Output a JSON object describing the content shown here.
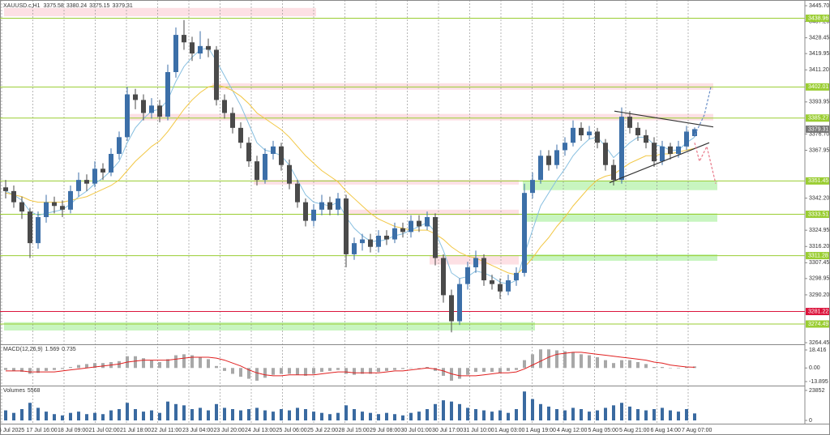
{
  "chart_data": {
    "type": "candlestick",
    "symbol": "XAUUSD.c,H1",
    "ylim": [
      3263.6,
      3447.9
    ],
    "yticks": [
      {
        "value": 3445.7,
        "label": "3445.70"
      },
      {
        "value": 3437.2,
        "label": "3437.20"
      },
      {
        "value": 3428.45,
        "label": "3428.45"
      },
      {
        "value": 3419.95,
        "label": "3419.95"
      },
      {
        "value": 3411.2,
        "label": "3411.20"
      },
      3393.95,
      {
        "value": 3376.7,
        "label": "3376.70"
      },
      3367.95,
      {
        "value": 3342.2,
        "label": "3342.20"
      },
      3324.95,
      {
        "value": 3316.2,
        "label": "3316.20"
      },
      3307.45,
      3298.95,
      {
        "value": 3290.2,
        "label": "3290.20"
      },
      3264.45
    ],
    "xticks": [
      {
        "value": -0.5,
        "label": "16 Jul 2025"
      },
      {
        "value": 3.35,
        "label": "17 Jul 16:00"
      },
      {
        "value": 7.2,
        "label": "18 Jul 09:00"
      },
      {
        "value": 11.05,
        "label": "21 Jul 02:00"
      },
      {
        "value": 14.9,
        "label": "21 Jul 18:00"
      },
      {
        "value": 18.75,
        "label": "22 Jul 11:00"
      },
      {
        "value": 22.6,
        "label": "23 Jul 04:00"
      },
      {
        "value": 26.45,
        "label": "23 Jul 20:00"
      },
      {
        "value": 30.3,
        "label": "24 Jul 13:00"
      },
      {
        "value": 34.15,
        "label": "25 Jul 06:00"
      },
      {
        "value": 38,
        "label": "25 Jul 22:00"
      },
      {
        "value": 41.85,
        "label": "28 Jul 15:00"
      },
      {
        "value": 45.7,
        "label": "29 Jul 08:00"
      },
      {
        "value": 49.55,
        "label": "30 Jul 01:00"
      },
      {
        "value": 53.4,
        "label": "30 Jul 17:00"
      },
      {
        "value": 57.25,
        "label": "31 Jul 10:00"
      },
      {
        "value": 61.1,
        "label": "1 Aug 03:00"
      },
      {
        "value": 64.95,
        "label": "1 Aug 19:00"
      },
      {
        "value": 68.8,
        "label": "4 Aug 12:00"
      },
      {
        "value": 72.65,
        "label": "5 Aug 05:00"
      },
      {
        "value": 76.5,
        "label": "5 Aug 21:00"
      },
      {
        "value": 80.35,
        "label": "6 Aug 14:00"
      },
      {
        "value": 84.2,
        "label": "7 Aug 07:00"
      }
    ],
    "grid": "vertical",
    "up_color": "#3c6fa8",
    "down_color": "#4a4a4a",
    "ohlc": [
      [
        3348,
        3352,
        3342,
        3346
      ],
      [
        3346,
        3349,
        3337,
        3340
      ],
      [
        3340,
        3343,
        3331,
        3335
      ],
      [
        3335,
        3337,
        3310,
        3318
      ],
      [
        3318,
        3335,
        3315,
        3332
      ],
      [
        3332,
        3344,
        3329,
        3340
      ],
      [
        3340,
        3343,
        3334,
        3338
      ],
      [
        3338,
        3341,
        3332,
        3336
      ],
      [
        3336,
        3349,
        3334,
        3346
      ],
      [
        3346,
        3356,
        3343,
        3352
      ],
      [
        3352,
        3355,
        3346,
        3350
      ],
      [
        3350,
        3362,
        3348,
        3358
      ],
      [
        3358,
        3361,
        3352,
        3356
      ],
      [
        3356,
        3369,
        3354,
        3366
      ],
      [
        3366,
        3378,
        3363,
        3375
      ],
      [
        3375,
        3402,
        3373,
        3398
      ],
      [
        3398,
        3401,
        3390,
        3395
      ],
      [
        3395,
        3398,
        3384,
        3388
      ],
      [
        3388,
        3396,
        3385,
        3392
      ],
      [
        3392,
        3395,
        3383,
        3386
      ],
      [
        3386,
        3414,
        3384,
        3410
      ],
      [
        3410,
        3434,
        3407,
        3430
      ],
      [
        3430,
        3438,
        3422,
        3426
      ],
      [
        3426,
        3429,
        3416,
        3420
      ],
      [
        3420,
        3432,
        3417,
        3424
      ],
      [
        3424,
        3428,
        3418,
        3422
      ],
      [
        3422,
        3424,
        3392,
        3395
      ],
      [
        3395,
        3398,
        3385,
        3388
      ],
      [
        3388,
        3391,
        3377,
        3380
      ],
      [
        3380,
        3383,
        3369,
        3372
      ],
      [
        3372,
        3375,
        3359,
        3362
      ],
      [
        3362,
        3365,
        3349,
        3352
      ],
      [
        3352,
        3369,
        3350,
        3366
      ],
      [
        3366,
        3373,
        3363,
        3370
      ],
      [
        3370,
        3372,
        3357,
        3360
      ],
      [
        3360,
        3363,
        3347,
        3350
      ],
      [
        3350,
        3352,
        3337,
        3340
      ],
      [
        3340,
        3342,
        3327,
        3330
      ],
      [
        3330,
        3339,
        3327,
        3336
      ],
      [
        3336,
        3344,
        3333,
        3340
      ],
      [
        3340,
        3343,
        3333,
        3336
      ],
      [
        3336,
        3345,
        3333,
        3342
      ],
      [
        3342,
        3344,
        3305,
        3312
      ],
      [
        3312,
        3321,
        3309,
        3318
      ],
      [
        3318,
        3323,
        3314,
        3320
      ],
      [
        3320,
        3323,
        3313,
        3316
      ],
      [
        3316,
        3325,
        3313,
        3322
      ],
      [
        3322,
        3325,
        3317,
        3320
      ],
      [
        3320,
        3329,
        3318,
        3326
      ],
      [
        3326,
        3329,
        3321,
        3324
      ],
      [
        3324,
        3333,
        3321,
        3330
      ],
      [
        3330,
        3333,
        3324,
        3327
      ],
      [
        3327,
        3335,
        3325,
        3332
      ],
      [
        3332,
        3334,
        3306,
        3310
      ],
      [
        3310,
        3312,
        3286,
        3290
      ],
      [
        3290,
        3293,
        3270,
        3276
      ],
      [
        3276,
        3299,
        3274,
        3296
      ],
      [
        3296,
        3308,
        3293,
        3305
      ],
      [
        3305,
        3314,
        3302,
        3310
      ],
      [
        3310,
        3312,
        3295,
        3298
      ],
      [
        3298,
        3301,
        3293,
        3296
      ],
      [
        3296,
        3299,
        3288,
        3292
      ],
      [
        3292,
        3301,
        3290,
        3298
      ],
      [
        3298,
        3305,
        3295,
        3302
      ],
      [
        3302,
        3350,
        3300,
        3345
      ],
      [
        3345,
        3356,
        3342,
        3352
      ],
      [
        3352,
        3368,
        3350,
        3365
      ],
      [
        3365,
        3368,
        3357,
        3360
      ],
      [
        3360,
        3371,
        3358,
        3368
      ],
      [
        3368,
        3375,
        3365,
        3372
      ],
      [
        3372,
        3384,
        3370,
        3380
      ],
      [
        3380,
        3383,
        3373,
        3376
      ],
      [
        3376,
        3381,
        3374,
        3378
      ],
      [
        3378,
        3380,
        3369,
        3372
      ],
      [
        3372,
        3374,
        3357,
        3360
      ],
      [
        3360,
        3363,
        3349,
        3352
      ],
      [
        3352,
        3391,
        3350,
        3386
      ],
      [
        3386,
        3389,
        3377,
        3380
      ],
      [
        3380,
        3383,
        3373,
        3376
      ],
      [
        3376,
        3379,
        3369,
        3372
      ],
      [
        3372,
        3375,
        3359,
        3362
      ],
      [
        3362,
        3373,
        3360,
        3370
      ],
      [
        3370,
        3372,
        3363,
        3366
      ],
      [
        3366,
        3373,
        3364,
        3370
      ],
      [
        3370,
        3381,
        3368,
        3378
      ],
      [
        3375.58,
        3380.24,
        3375.15,
        3379.31
      ]
    ],
    "ma_fast": {
      "color": "#87bfe0",
      "values": [
        3346,
        3344,
        3341,
        3335,
        3333,
        3334,
        3335,
        3336,
        3339,
        3343,
        3346,
        3350,
        3353,
        3357,
        3362,
        3372,
        3380,
        3385,
        3389,
        3390,
        3395,
        3405,
        3413,
        3418,
        3422,
        3423,
        3416,
        3408,
        3400,
        3392,
        3382,
        3372,
        3368,
        3367,
        3365,
        3360,
        3352,
        3344,
        3340,
        3339,
        3338,
        3340,
        3332,
        3326,
        3322,
        3319,
        3319,
        3320,
        3322,
        3323,
        3325,
        3327,
        3329,
        3324,
        3314,
        3302,
        3299,
        3300,
        3303,
        3302,
        3300,
        3297,
        3296,
        3298,
        3312,
        3325,
        3338,
        3345,
        3352,
        3358,
        3365,
        3370,
        3374,
        3375,
        3370,
        3364,
        3368,
        3372,
        3375,
        3375,
        3371,
        3370,
        3368,
        3368,
        3372,
        3375
      ]
    },
    "ma_slow": {
      "color": "#f2c744",
      "values": [
        3345,
        3344,
        3343,
        3341,
        3340,
        3340,
        3340,
        3340,
        3341,
        3342,
        3343,
        3345,
        3347,
        3349,
        3352,
        3357,
        3362,
        3366,
        3370,
        3373,
        3378,
        3384,
        3390,
        3395,
        3399,
        3402,
        3403,
        3402,
        3400,
        3397,
        3393,
        3388,
        3385,
        3382,
        3379,
        3375,
        3370,
        3365,
        3361,
        3357,
        3354,
        3351,
        3346,
        3342,
        3338,
        3334,
        3331,
        3329,
        3327,
        3326,
        3325,
        3325,
        3325,
        3323,
        3320,
        3316,
        3313,
        3311,
        3310,
        3308,
        3306,
        3304,
        3302,
        3301,
        3305,
        3310,
        3316,
        3321,
        3327,
        3332,
        3338,
        3343,
        3348,
        3352,
        3354,
        3355,
        3358,
        3361,
        3363,
        3365,
        3365,
        3366,
        3366,
        3367,
        3368,
        3369
      ]
    },
    "levels": [
      {
        "value": 3438.96,
        "color": "#9acd32"
      },
      {
        "value": 3402.01,
        "color": "#9acd32"
      },
      {
        "value": 3385.27,
        "color": "#9acd32"
      },
      {
        "value": 3351.45,
        "color": "#9acd32"
      },
      {
        "value": 3333.51,
        "color": "#9acd32"
      },
      {
        "value": 3311.28,
        "color": "#9acd32"
      },
      {
        "value": 3281.22,
        "color": "#dc143c"
      },
      {
        "value": 3274.49,
        "color": "#9acd32"
      }
    ],
    "zones": [
      {
        "low": 3440,
        "high": 3444.5,
        "from": -0.2,
        "to": 38.3,
        "color": "#fde0e4"
      },
      {
        "low": 3400.5,
        "high": 3404,
        "from": 25.5,
        "to": 87.3,
        "color": "#fde0e4"
      },
      {
        "low": 3384,
        "high": 3387.5,
        "from": 15.3,
        "to": 87.3,
        "color": "#fde0e4"
      },
      {
        "low": 3349.5,
        "high": 3352,
        "from": 30.6,
        "to": 63.3,
        "color": "#fde0e4"
      },
      {
        "low": 3346.5,
        "high": 3351.5,
        "from": 63.8,
        "to": 87.8,
        "color": "#c8f5c0"
      },
      {
        "low": 3333,
        "high": 3336,
        "from": 42.3,
        "to": 63.3,
        "color": "#fde0e4"
      },
      {
        "low": 3329.5,
        "high": 3334,
        "from": 63.8,
        "to": 87.8,
        "color": "#c8f5c0"
      },
      {
        "low": 3306.5,
        "high": 3311.5,
        "from": 52.3,
        "to": 63.3,
        "color": "#fde0e4"
      },
      {
        "low": 3308.5,
        "high": 3312,
        "from": 63.8,
        "to": 87.8,
        "color": "#c8f5c0"
      },
      {
        "low": 3271,
        "high": 3275.5,
        "from": -0.2,
        "to": 65.3,
        "color": "#c8f5c0"
      }
    ],
    "lines": [
      {
        "x": [
          75.1,
          87.3
        ],
        "y": [
          3389,
          3380.5
        ],
        "color": "#333333"
      },
      {
        "x": [
          74.5,
          86.8
        ],
        "y": [
          3350.5,
          3372
        ],
        "color": "#333333"
      },
      {
        "x": [
          85,
          86.2,
          87
        ],
        "y": [
          3376,
          3387,
          3402
        ],
        "color": "#6a8fc8",
        "dash": true
      },
      {
        "x": [
          85,
          85.6,
          86.5,
          87.6
        ],
        "y": [
          3372,
          3362,
          3370,
          3350
        ],
        "color": "#e8798a",
        "dash": true
      }
    ],
    "macd": {
      "name": "MACD(12,26,9)",
      "ylim": [
        -18,
        22.56
      ],
      "yticks": [
        18.416,
        {
          "value": 0,
          "label": "0.00"
        },
        -13.895
      ],
      "hist_color": "#a8a8a8",
      "signal_color": "#e02020",
      "hist": [
        -2,
        -3,
        -4,
        -6,
        -5,
        -3,
        -2,
        -1,
        1,
        3,
        4,
        5,
        5,
        6,
        7,
        12,
        12,
        10,
        8,
        6,
        9,
        13,
        14,
        13,
        11,
        9,
        2,
        -3,
        -6,
        -9,
        -11,
        -13,
        -10,
        -7,
        -6,
        -6,
        -7,
        -8,
        -6,
        -4,
        -3,
        -2,
        -6,
        -7,
        -6,
        -6,
        -4,
        -3,
        -2,
        -1,
        0,
        0,
        1,
        -3,
        -8,
        -13,
        -11,
        -7,
        -4,
        -4,
        -4,
        -5,
        -3,
        -2,
        8,
        14,
        19,
        19,
        18,
        17,
        16,
        14,
        13,
        11,
        8,
        5,
        8,
        8,
        6,
        4,
        1,
        1,
        0,
        0,
        1,
        1.569
      ],
      "signal": [
        -3,
        -3,
        -3,
        -4,
        -4,
        -4,
        -4,
        -3,
        -2,
        -1,
        0,
        1,
        2,
        3,
        4,
        6,
        7,
        8,
        8,
        8,
        8,
        9,
        10,
        11,
        11,
        11,
        10,
        8,
        5,
        2,
        -2,
        -5,
        -7,
        -8,
        -8,
        -7,
        -7,
        -7,
        -7,
        -6,
        -5,
        -4,
        -4,
        -5,
        -5,
        -5,
        -5,
        -4,
        -3,
        -3,
        -2,
        -1,
        0,
        -1,
        -3,
        -6,
        -8,
        -8,
        -8,
        -7,
        -6,
        -5,
        -5,
        -4,
        -1,
        3,
        7,
        11,
        14,
        15,
        16,
        16,
        15,
        14,
        13,
        12,
        11,
        10,
        9,
        8,
        6,
        5,
        3,
        2,
        1,
        0.735
      ]
    },
    "volumes": {
      "name": "Volumes",
      "ylim": [
        0,
        26400
      ],
      "yticks": [
        23852,
        0
      ],
      "color": "#3a6aa0",
      "values": [
        8000,
        6000,
        9000,
        14000,
        10000,
        7000,
        5000,
        4000,
        6000,
        7000,
        5000,
        6000,
        5000,
        8000,
        9000,
        14000,
        9000,
        7000,
        8000,
        6000,
        15000,
        13000,
        12000,
        9000,
        10000,
        8000,
        13000,
        10000,
        9000,
        8000,
        9000,
        10000,
        8000,
        7000,
        9000,
        8000,
        10000,
        9000,
        7000,
        6000,
        5000,
        6000,
        12000,
        9000,
        7000,
        6000,
        5000,
        6000,
        5000,
        4000,
        6000,
        7000,
        9000,
        13000,
        16000,
        15000,
        13000,
        10000,
        9000,
        8000,
        7000,
        8000,
        6000,
        9000,
        23000,
        17000,
        13000,
        11000,
        9000,
        8000,
        10000,
        9000,
        7000,
        8000,
        10000,
        12000,
        14000,
        11000,
        9000,
        8000,
        9000,
        10000,
        8000,
        7000,
        9000,
        5568
      ]
    }
  }
}
